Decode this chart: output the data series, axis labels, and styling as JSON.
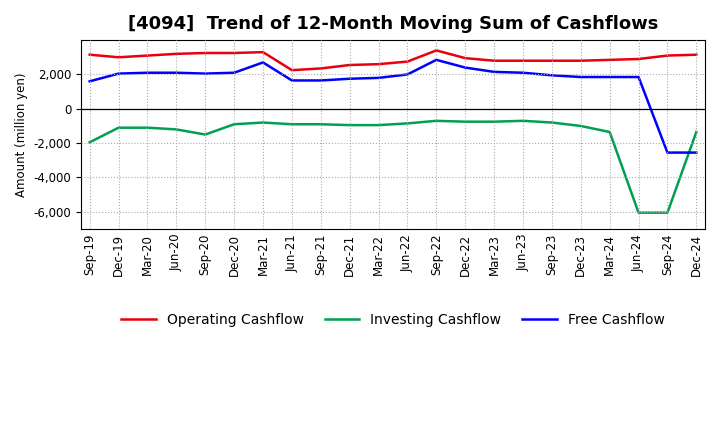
{
  "title": "[4094]  Trend of 12-Month Moving Sum of Cashflows",
  "ylabel": "Amount (million yen)",
  "xlabels": [
    "Sep-19",
    "Dec-19",
    "Mar-20",
    "Jun-20",
    "Sep-20",
    "Dec-20",
    "Mar-21",
    "Jun-21",
    "Sep-21",
    "Dec-21",
    "Mar-22",
    "Jun-22",
    "Sep-22",
    "Dec-22",
    "Mar-23",
    "Jun-23",
    "Sep-23",
    "Dec-23",
    "Mar-24",
    "Jun-24",
    "Sep-24",
    "Dec-24"
  ],
  "operating": [
    3150,
    3000,
    3100,
    3200,
    3250,
    3250,
    3300,
    2250,
    2350,
    2550,
    2600,
    2750,
    3400,
    2950,
    2800,
    2800,
    2800,
    2800,
    2850,
    2900,
    3100,
    3150
  ],
  "investing": [
    -1950,
    -1100,
    -1100,
    -1200,
    -1500,
    -900,
    -800,
    -900,
    -900,
    -950,
    -950,
    -850,
    -700,
    -750,
    -750,
    -700,
    -800,
    -1000,
    -1350,
    -6050,
    -6050,
    -1350
  ],
  "free": [
    1600,
    2050,
    2100,
    2100,
    2050,
    2100,
    2700,
    1650,
    1650,
    1750,
    1800,
    2000,
    2850,
    2400,
    2150,
    2100,
    1950,
    1850,
    1850,
    1850,
    -2550,
    -2550
  ],
  "ylim": [
    -7000,
    4000
  ],
  "yticks": [
    -6000,
    -4000,
    -2000,
    0,
    2000
  ],
  "operating_color": "#e8000d",
  "investing_color": "#00a050",
  "free_color": "#0000ff",
  "bg_color": "#ffffff",
  "plot_bg_color": "#ffffff",
  "grid_color": "#aaaaaa",
  "title_fontsize": 13,
  "legend_fontsize": 10,
  "axis_fontsize": 8.5
}
